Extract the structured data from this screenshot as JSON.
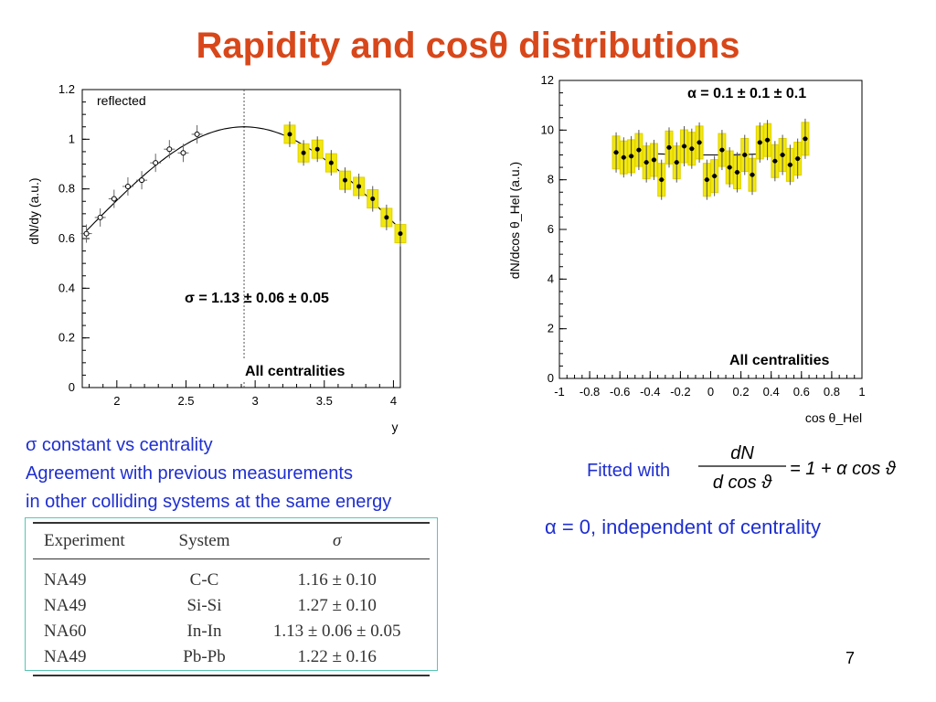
{
  "title": "Rapidity and cosθ distributions",
  "notes": [
    "σ constant vs centrality",
    "Agreement with previous measurements",
    "in other colliding systems at the same energy"
  ],
  "fitted_with": "Fitted with",
  "formula": {
    "numerator": "dN",
    "denominator": "d cos ϑ",
    "rhs": "= 1 + α cos ϑ"
  },
  "alpha_result": "α = 0, independent of centrality",
  "page_number": "7",
  "table": {
    "headers": [
      "Experiment",
      "System",
      "σ"
    ],
    "rows": [
      [
        "NA49",
        "C-C",
        "1.16 ± 0.10"
      ],
      [
        "NA49",
        "Si-Si",
        "1.27 ± 0.10"
      ],
      [
        "NA60",
        "In-In",
        "1.13 ± 0.06 ± 0.05"
      ],
      [
        "NA49",
        "Pb-Pb",
        "1.22 ± 0.16"
      ]
    ]
  },
  "chart_data": [
    {
      "type": "scatter",
      "ylabel": "dN/dy (a.u.)",
      "xlabel": "y",
      "xlim": [
        1.75,
        4.05
      ],
      "ylim": [
        0,
        1.2
      ],
      "xticks": [
        2,
        2.5,
        3,
        3.5,
        4
      ],
      "yticks": [
        0,
        0.2,
        0.4,
        0.6,
        0.8,
        1,
        1.2
      ],
      "midrapidity_line": 2.92,
      "annotations": {
        "reflected": "reflected",
        "sigma": "σ = 1.13 ± 0.06 ± 0.05",
        "centrality": "All centralities"
      },
      "fit": {
        "form": "gaussian",
        "mean": 2.92,
        "sigma": 1.13,
        "amplitude": 1.05
      },
      "series": [
        {
          "style": "open-markers",
          "points": [
            [
              1.78,
              0.62
            ],
            [
              1.88,
              0.685
            ],
            [
              1.98,
              0.76
            ],
            [
              2.08,
              0.81
            ],
            [
              2.18,
              0.835
            ],
            [
              2.28,
              0.905
            ],
            [
              2.38,
              0.96
            ],
            [
              2.48,
              0.945
            ],
            [
              2.58,
              1.02
            ]
          ]
        },
        {
          "style": "filled-markers-yellow-boxes",
          "points": [
            [
              3.25,
              1.02
            ],
            [
              3.35,
              0.945
            ],
            [
              3.45,
              0.96
            ],
            [
              3.55,
              0.905
            ],
            [
              3.65,
              0.835
            ],
            [
              3.75,
              0.81
            ],
            [
              3.85,
              0.76
            ],
            [
              3.95,
              0.685
            ],
            [
              4.05,
              0.62
            ]
          ]
        }
      ]
    },
    {
      "type": "scatter",
      "ylabel": "dN/dcos θ_Hel (a.u.)",
      "xlabel": "cos θ_Hel",
      "xlim": [
        -1,
        1
      ],
      "ylim": [
        0,
        12
      ],
      "xticks": [
        -1,
        -0.8,
        -0.6,
        -0.4,
        -0.2,
        0,
        0.2,
        0.4,
        0.6,
        0.8,
        1
      ],
      "xtick_labels": [
        "-1",
        "-0.8",
        "-0.6",
        "-0.4",
        "-0.2",
        "0",
        "0.2",
        "0.4",
        "0.6",
        "0.8",
        "1"
      ],
      "yticks": [
        0,
        2,
        4,
        6,
        8,
        10,
        12
      ],
      "annotations": {
        "alpha": "α = 0.1 ± 0.1 ± 0.1",
        "centrality": "All centralities"
      },
      "fit": {
        "form": "1 + α cos θ",
        "norm": 9.05,
        "alpha": 0.1
      },
      "points": [
        [
          -0.625,
          9.1
        ],
        [
          -0.575,
          8.9
        ],
        [
          -0.525,
          8.95
        ],
        [
          -0.475,
          9.2
        ],
        [
          -0.425,
          8.7
        ],
        [
          -0.375,
          8.8
        ],
        [
          -0.325,
          8.0
        ],
        [
          -0.275,
          9.3
        ],
        [
          -0.225,
          8.7
        ],
        [
          -0.175,
          9.35
        ],
        [
          -0.125,
          9.25
        ],
        [
          -0.075,
          9.5
        ],
        [
          -0.025,
          8.0
        ],
        [
          0.025,
          8.15
        ],
        [
          0.075,
          9.2
        ],
        [
          0.125,
          8.5
        ],
        [
          0.175,
          8.3
        ],
        [
          0.225,
          9.0
        ],
        [
          0.275,
          8.2
        ],
        [
          0.325,
          9.5
        ],
        [
          0.375,
          9.6
        ],
        [
          0.425,
          8.75
        ],
        [
          0.475,
          9.0
        ],
        [
          0.525,
          8.6
        ],
        [
          0.575,
          8.85
        ],
        [
          0.625,
          9.65
        ]
      ]
    }
  ]
}
